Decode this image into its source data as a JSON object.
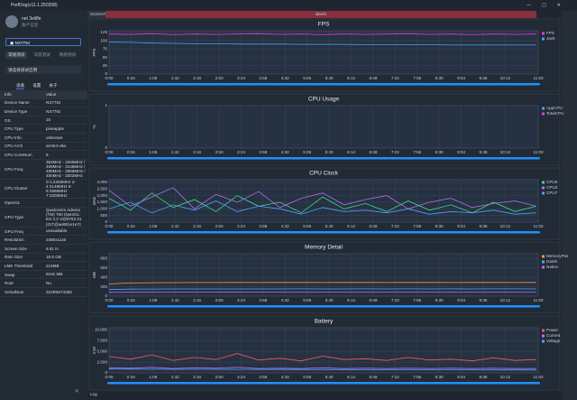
{
  "window": {
    "title": "PerfDog(v11.1.250208)"
  },
  "sidebar": {
    "user": "net 3eliffe",
    "account": "账户信息",
    "device": "NX779J",
    "modes": [
      "常规测试",
      "深度测试",
      "网络测试"
    ],
    "app_select": "请选择测试应用",
    "tabs": [
      "设备",
      "设置",
      "关于"
    ],
    "info_table": {
      "headers": [
        "Info",
        "Value"
      ],
      "rows": [
        [
          "Device Name",
          "NX779J"
        ],
        [
          "Device Type",
          "NX779J"
        ],
        [
          "OS",
          "15"
        ],
        [
          "CPU Type",
          "pineapple"
        ],
        [
          "CPU Info",
          "unknown"
        ],
        [
          "CPU Arch",
          "arm64-v8a"
        ],
        [
          "CPU CoreNum",
          "8"
        ],
        [
          "CPU Freq",
          "364MHz - 2265MHz / 499MHz - 3148MHz / 499MHz - 2956MHz / 480MHz - 3302MHz"
        ],
        [
          "CPU Cluster",
          "0-1:2265MHz 2-4:3148MHz 5-6:2956MHz 7:3302MHz"
        ],
        [
          "OpenGL",
          ""
        ],
        [
          "GPU Type",
          "Qualcomm Adreno (TM) 750 OpenGL ES 3.2 V@0762.31 (GIT@ae881e1e7c"
        ],
        [
          "GPU Freq",
          "unavailable"
        ],
        [
          "Resolution",
          "2480x1116"
        ],
        [
          "Screen Size",
          "6.81 in"
        ],
        [
          "Ram Size",
          "15.6 GB"
        ],
        [
          "LMK Threshold",
          "216MB"
        ],
        [
          "Swap",
          "8191 MB"
        ],
        [
          "Root",
          "No"
        ],
        [
          "SerialNum",
          "323R5074305"
        ]
      ]
    }
  },
  "tabs": {
    "screen": "ScreenTab",
    "label": "label1",
    "log": "Log"
  },
  "chart_data": [
    {
      "type": "line",
      "title": "FPS",
      "ylabel": "FPS",
      "xlim": [
        0,
        663
      ],
      "ylim": [
        0,
        130
      ],
      "yticks": [
        0,
        25,
        50,
        75,
        100,
        125
      ],
      "xticks": [
        {
          "value": 0,
          "label": "0:00"
        },
        {
          "value": 34,
          "label": "0:34"
        },
        {
          "value": 68,
          "label": "1:08"
        },
        {
          "value": 102,
          "label": "1:42"
        },
        {
          "value": 136,
          "label": "2:16"
        },
        {
          "value": 170,
          "label": "2:50"
        },
        {
          "value": 204,
          "label": "3:24"
        },
        {
          "value": 238,
          "label": "3:58"
        },
        {
          "value": 272,
          "label": "4:32"
        },
        {
          "value": 306,
          "label": "5:06"
        },
        {
          "value": 340,
          "label": "5:40"
        },
        {
          "value": 374,
          "label": "6:14"
        },
        {
          "value": 408,
          "label": "6:48"
        },
        {
          "value": 442,
          "label": "7:22"
        },
        {
          "value": 476,
          "label": "7:56"
        },
        {
          "value": 510,
          "label": "8:30"
        },
        {
          "value": 544,
          "label": "9:04"
        },
        {
          "value": 578,
          "label": "9:38"
        },
        {
          "value": 612,
          "label": "10:12"
        },
        {
          "value": 663,
          "label": "11:03"
        }
      ],
      "x": [
        0,
        33,
        66,
        99,
        132,
        165,
        198,
        231,
        264,
        297,
        330,
        363,
        396,
        429,
        462,
        495,
        528,
        561,
        594,
        627,
        660
      ],
      "series": [
        {
          "name": "FPS",
          "color": "#e040e0",
          "values": [
            120,
            119,
            121,
            118,
            120,
            119,
            120,
            121,
            119,
            120,
            118,
            120,
            119,
            120,
            121,
            119,
            120,
            118,
            120,
            119,
            120
          ]
        },
        {
          "name": "Jank",
          "color": "#4aa3ff",
          "values": [
            96,
            95,
            93,
            92,
            91,
            91,
            90,
            90,
            90,
            89,
            89,
            89,
            88,
            88,
            88,
            88,
            87,
            87,
            87,
            87,
            87
          ]
        }
      ]
    },
    {
      "type": "line",
      "title": "CPU Usage",
      "ylabel": "%",
      "xlim": [
        0,
        663
      ],
      "ylim": [
        0,
        1
      ],
      "yticks": [
        0,
        1
      ],
      "xticks": [
        {
          "value": 0,
          "label": "0:00"
        },
        {
          "value": 34,
          "label": "0:34"
        },
        {
          "value": 68,
          "label": "1:08"
        },
        {
          "value": 102,
          "label": "1:42"
        },
        {
          "value": 136,
          "label": "2:16"
        },
        {
          "value": 170,
          "label": "2:50"
        },
        {
          "value": 204,
          "label": "3:24"
        },
        {
          "value": 238,
          "label": "3:58"
        },
        {
          "value": 272,
          "label": "4:32"
        },
        {
          "value": 306,
          "label": "5:06"
        },
        {
          "value": 340,
          "label": "5:40"
        },
        {
          "value": 374,
          "label": "6:14"
        },
        {
          "value": 408,
          "label": "6:48"
        },
        {
          "value": 442,
          "label": "7:22"
        },
        {
          "value": 476,
          "label": "7:56"
        },
        {
          "value": 510,
          "label": "8:30"
        },
        {
          "value": 544,
          "label": "9:04"
        },
        {
          "value": 578,
          "label": "9:38"
        },
        {
          "value": 612,
          "label": "10:12"
        },
        {
          "value": 663,
          "label": "11:03"
        }
      ],
      "x": [
        0,
        33,
        66,
        99,
        132,
        165,
        198,
        231,
        264,
        297,
        330,
        363,
        396,
        429,
        462,
        495,
        528,
        561,
        594,
        627,
        660
      ],
      "series": [
        {
          "name": "AppCPU",
          "color": "#4aa3ff",
          "values": [
            null,
            null,
            null,
            null,
            null,
            null,
            null,
            null,
            null,
            null,
            null,
            null,
            null,
            null,
            null,
            null,
            null,
            null,
            null,
            null,
            null
          ]
        },
        {
          "name": "TotalCPU",
          "color": "#e040e0",
          "values": [
            null,
            null,
            null,
            null,
            null,
            null,
            null,
            null,
            null,
            null,
            null,
            null,
            null,
            null,
            null,
            null,
            null,
            null,
            null,
            null,
            null
          ]
        }
      ]
    },
    {
      "type": "line",
      "title": "CPU Clock",
      "ylabel": "MHz",
      "xlim": [
        0,
        663
      ],
      "ylim": [
        0,
        3200
      ],
      "yticks": [
        0,
        500,
        {
          "value": 1000,
          "label": "1,000"
        },
        {
          "value": 1500,
          "label": "1,500"
        },
        {
          "value": 2000,
          "label": "2,000"
        },
        {
          "value": 2500,
          "label": "2,500"
        },
        {
          "value": 3000,
          "label": "3,000"
        }
      ],
      "xticks": [
        {
          "value": 0,
          "label": "0:00"
        },
        {
          "value": 34,
          "label": "0:34"
        },
        {
          "value": 68,
          "label": "1:08"
        },
        {
          "value": 102,
          "label": "1:42"
        },
        {
          "value": 136,
          "label": "2:16"
        },
        {
          "value": 170,
          "label": "2:50"
        },
        {
          "value": 204,
          "label": "3:24"
        },
        {
          "value": 238,
          "label": "3:58"
        },
        {
          "value": 272,
          "label": "4:32"
        },
        {
          "value": 306,
          "label": "5:06"
        },
        {
          "value": 340,
          "label": "5:40"
        },
        {
          "value": 374,
          "label": "6:14"
        },
        {
          "value": 408,
          "label": "6:48"
        },
        {
          "value": 442,
          "label": "7:22"
        },
        {
          "value": 476,
          "label": "7:56"
        },
        {
          "value": 510,
          "label": "8:30"
        },
        {
          "value": 544,
          "label": "9:04"
        },
        {
          "value": 578,
          "label": "9:38"
        },
        {
          "value": 612,
          "label": "10:12"
        },
        {
          "value": 663,
          "label": "11:03"
        }
      ],
      "x": [
        0,
        33,
        66,
        99,
        132,
        165,
        198,
        231,
        264,
        297,
        330,
        363,
        396,
        429,
        462,
        495,
        528,
        561,
        594,
        627,
        660
      ],
      "series": [
        {
          "name": "CPU0",
          "color": "#3ddc84",
          "values": [
            1800,
            900,
            2200,
            1100,
            1700,
            800,
            2000,
            1200,
            1500,
            700,
            1900,
            1000,
            1400,
            800,
            1600,
            900,
            1300,
            700,
            1500,
            800,
            1200
          ]
        },
        {
          "name": "CPU2",
          "color": "#b070f0",
          "values": [
            2400,
            1200,
            1900,
            2600,
            1000,
            2100,
            1500,
            2300,
            1100,
            1800,
            2200,
            1300,
            1700,
            2000,
            1000,
            1500,
            1800,
            1100,
            1400,
            1600,
            1200
          ]
        },
        {
          "name": "CPU7",
          "color": "#4aa3ff",
          "values": [
            1000,
            1500,
            700,
            1300,
            900,
            1600,
            800,
            1200,
            1000,
            600,
            1100,
            800,
            900,
            700,
            1000,
            600,
            800,
            700,
            900,
            600,
            700
          ]
        }
      ]
    },
    {
      "type": "line",
      "title": "Memory Detail",
      "ylabel": "MB",
      "xlim": [
        0,
        663
      ],
      "ylim": [
        0,
        900
      ],
      "yticks": [
        0,
        200,
        400,
        600,
        800
      ],
      "xticks": [
        {
          "value": 0,
          "label": "0:00"
        },
        {
          "value": 34,
          "label": "0:34"
        },
        {
          "value": 68,
          "label": "1:08"
        },
        {
          "value": 102,
          "label": "1:42"
        },
        {
          "value": 136,
          "label": "2:16"
        },
        {
          "value": 170,
          "label": "2:50"
        },
        {
          "value": 204,
          "label": "3:24"
        },
        {
          "value": 238,
          "label": "3:58"
        },
        {
          "value": 272,
          "label": "4:32"
        },
        {
          "value": 306,
          "label": "5:06"
        },
        {
          "value": 340,
          "label": "5:40"
        },
        {
          "value": 374,
          "label": "6:14"
        },
        {
          "value": 408,
          "label": "6:48"
        },
        {
          "value": 442,
          "label": "7:22"
        },
        {
          "value": 476,
          "label": "7:56"
        },
        {
          "value": 510,
          "label": "8:30"
        },
        {
          "value": 544,
          "label": "9:04"
        },
        {
          "value": 578,
          "label": "9:38"
        },
        {
          "value": 612,
          "label": "10:12"
        },
        {
          "value": 663,
          "label": "11:03"
        }
      ],
      "x": [
        0,
        33,
        66,
        99,
        132,
        165,
        198,
        231,
        264,
        297,
        330,
        363,
        396,
        429,
        462,
        495,
        528,
        561,
        594,
        627,
        660
      ],
      "series": [
        {
          "name": "MemoryPss",
          "color": "#ff9a3c",
          "values": [
            260,
            280,
            285,
            288,
            290,
            290,
            291,
            290,
            292,
            291,
            290,
            292,
            291,
            290,
            291,
            292,
            290,
            291,
            292,
            290,
            291
          ]
        },
        {
          "name": "Dalvik",
          "color": "#4aa3ff",
          "values": [
            140,
            150,
            152,
            153,
            153,
            154,
            154,
            153,
            154,
            155,
            154,
            154,
            155,
            154,
            155,
            154,
            155,
            154,
            155,
            155,
            154
          ]
        },
        {
          "name": "Native",
          "color": "#b070f0",
          "values": [
            80,
            85,
            86,
            86,
            87,
            87,
            88,
            87,
            88,
            88,
            87,
            88,
            88,
            88,
            87,
            88,
            88,
            88,
            87,
            88,
            88
          ]
        }
      ]
    },
    {
      "type": "line",
      "title": "Battery",
      "ylabel": "mW",
      "xlim": [
        0,
        663
      ],
      "ylim": [
        0,
        10500
      ],
      "yticks": [
        0,
        {
          "value": 2500,
          "label": "2,500"
        },
        {
          "value": 5000,
          "label": "5,000"
        },
        {
          "value": 7500,
          "label": "7,500"
        },
        {
          "value": 10000,
          "label": "10,000"
        }
      ],
      "xticks": [
        {
          "value": 0,
          "label": "0:00"
        },
        {
          "value": 34,
          "label": "0:34"
        },
        {
          "value": 68,
          "label": "1:08"
        },
        {
          "value": 102,
          "label": "1:42"
        },
        {
          "value": 136,
          "label": "2:16"
        },
        {
          "value": 170,
          "label": "2:50"
        },
        {
          "value": 204,
          "label": "3:24"
        },
        {
          "value": 238,
          "label": "3:58"
        },
        {
          "value": 272,
          "label": "4:32"
        },
        {
          "value": 306,
          "label": "5:06"
        },
        {
          "value": 340,
          "label": "5:40"
        },
        {
          "value": 374,
          "label": "6:14"
        },
        {
          "value": 408,
          "label": "6:48"
        },
        {
          "value": 442,
          "label": "7:22"
        },
        {
          "value": 476,
          "label": "7:56"
        },
        {
          "value": 510,
          "label": "8:30"
        },
        {
          "value": 544,
          "label": "9:04"
        },
        {
          "value": 578,
          "label": "9:38"
        },
        {
          "value": 612,
          "label": "10:12"
        },
        {
          "value": 663,
          "label": "11:03"
        }
      ],
      "x": [
        0,
        33,
        66,
        99,
        132,
        165,
        198,
        231,
        264,
        297,
        330,
        363,
        396,
        429,
        462,
        495,
        528,
        561,
        594,
        627,
        660
      ],
      "series": [
        {
          "name": "Power",
          "color": "#ff5a5a",
          "values": [
            3800,
            3200,
            4200,
            2900,
            3600,
            3100,
            4500,
            3000,
            3400,
            2800,
            3900,
            3100,
            3300,
            2900,
            3600,
            3000,
            3200,
            2800,
            3500,
            2900,
            3100
          ]
        },
        {
          "name": "Current",
          "color": "#b070f0",
          "values": [
            1200,
            1100,
            1300,
            1000,
            1200,
            1100,
            1300,
            1000,
            1100,
            1000,
            1200,
            1000,
            1100,
            1000,
            1100,
            1000,
            1100,
            1000,
            1100,
            1000,
            1000
          ]
        },
        {
          "name": "Voltage",
          "color": "#4aa3ff",
          "values": [
            900,
            880,
            860,
            850,
            840,
            830,
            820,
            810,
            800,
            790,
            780,
            770,
            760,
            750,
            740,
            730,
            720,
            710,
            700,
            690,
            680
          ]
        }
      ]
    }
  ]
}
